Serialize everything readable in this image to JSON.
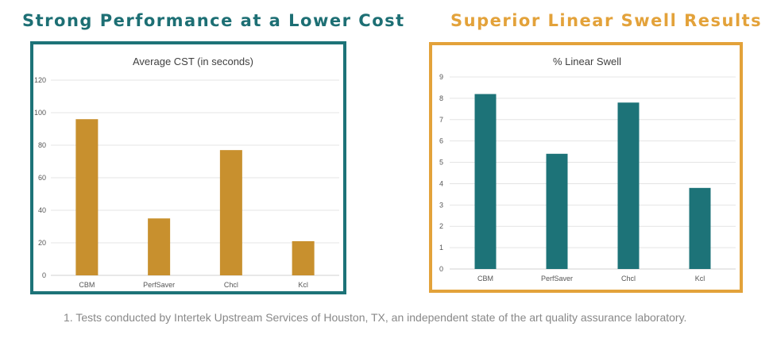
{
  "headings": {
    "left": "Strong Performance at a Lower Cost",
    "right": "Superior Linear Swell Results"
  },
  "chart_data": [
    {
      "type": "bar",
      "title": "Average CST (in seconds)",
      "categories": [
        "CBM",
        "PerfSaver",
        "Chcl",
        "Kcl"
      ],
      "values": [
        96,
        35,
        77,
        21
      ],
      "ylim": [
        0,
        120
      ],
      "yticks": [
        0,
        20,
        40,
        60,
        80,
        100,
        120
      ],
      "color": "#c8902e",
      "grid": true,
      "xlabel": "",
      "ylabel": ""
    },
    {
      "type": "bar",
      "title": "% Linear Swell",
      "categories": [
        "CBM",
        "PerfSaver",
        "Chcl",
        "Kcl"
      ],
      "values": [
        8.2,
        5.4,
        7.8,
        3.8
      ],
      "ylim": [
        0,
        9
      ],
      "yticks": [
        0,
        1,
        2,
        3,
        4,
        5,
        6,
        7,
        8,
        9
      ],
      "color": "#1d7378",
      "grid": true,
      "xlabel": "",
      "ylabel": ""
    }
  ],
  "footnote": "1.  Tests conducted by Intertek Upstream Services of Houston, TX, an independent state of the art quality assurance laboratory.",
  "colors": {
    "teal": "#1d7378",
    "gold": "#e3a23a",
    "bar_gold": "#c8902e"
  }
}
